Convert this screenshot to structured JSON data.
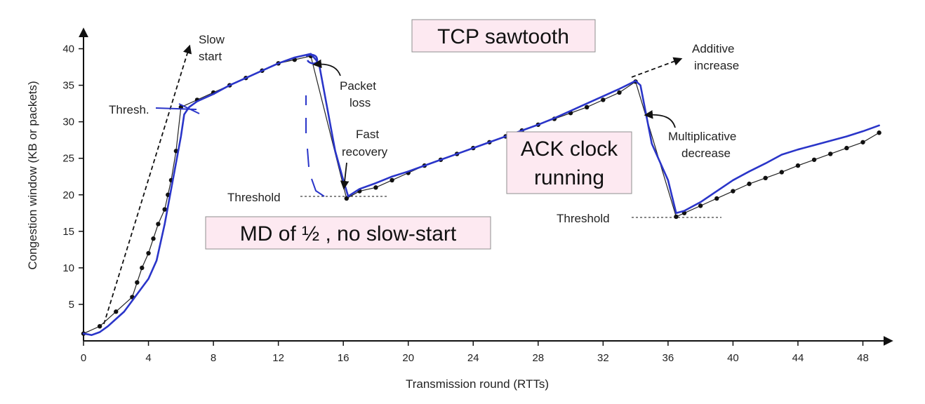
{
  "chart_data": {
    "type": "line",
    "xlabel": "Transmission round (RTTs)",
    "ylabel": "Congestion window  (KB or packets)",
    "xlim": [
      0,
      50
    ],
    "ylim": [
      0,
      42
    ],
    "xticks": [
      0,
      4,
      8,
      12,
      16,
      20,
      24,
      28,
      32,
      36,
      40,
      44,
      48
    ],
    "yticks": [
      5,
      10,
      15,
      20,
      25,
      30,
      35,
      40
    ],
    "grid": false,
    "legend": "none",
    "series": [
      {
        "style": "dotted-markers",
        "x": [
          0,
          1,
          2,
          3,
          3.3,
          3.6,
          4,
          4.3,
          4.6,
          5,
          5.2,
          5.4,
          5.7,
          6,
          7,
          8,
          9,
          10,
          11,
          12,
          13,
          14,
          16.2,
          17,
          18,
          19,
          20,
          21,
          22,
          23,
          24,
          25,
          26,
          27,
          28,
          29,
          30,
          31,
          32,
          33,
          34,
          36.5,
          37,
          38,
          39,
          40,
          41,
          42,
          43,
          44,
          45,
          46,
          47,
          48,
          49
        ],
        "y": [
          1,
          2,
          4,
          6,
          8,
          10,
          12,
          14,
          16,
          18,
          20,
          22,
          26,
          32,
          33,
          34,
          35,
          36,
          37,
          38,
          38.5,
          39,
          19.5,
          20.5,
          21,
          22,
          23,
          24,
          24.8,
          25.6,
          26.4,
          27.2,
          28,
          28.8,
          29.6,
          30.4,
          31.2,
          32,
          33,
          34,
          35.5,
          17,
          17.5,
          18.5,
          19.5,
          20.5,
          21.5,
          22.3,
          23.1,
          24,
          24.8,
          25.6,
          26.4,
          27.2,
          28.5
        ]
      },
      {
        "style": "hand-drawn",
        "color": "#2a35c9",
        "x": [
          0,
          0.5,
          1,
          1.5,
          2,
          2.5,
          3,
          3.5,
          4,
          4.5,
          5,
          5.5,
          6,
          6.2,
          6.5,
          7,
          8,
          9,
          10,
          11,
          12,
          13,
          14,
          14.5,
          15,
          15.5,
          16,
          16.3,
          17,
          18,
          19,
          20,
          21,
          22,
          23,
          24,
          25,
          26,
          27,
          28,
          29,
          30,
          31,
          32,
          33,
          34,
          34.3,
          35,
          36,
          36.5,
          37,
          38,
          39,
          40,
          41,
          42,
          43,
          44,
          45,
          46,
          47,
          48,
          49
        ],
        "y": [
          1,
          0.8,
          1.2,
          2,
          3,
          4,
          5.5,
          7,
          8.5,
          11,
          16,
          22,
          28,
          31,
          32,
          32.8,
          33.8,
          35,
          36,
          37,
          38,
          38.8,
          39.3,
          38,
          32,
          26,
          22,
          19.8,
          20.8,
          21.6,
          22.5,
          23.2,
          24,
          24.8,
          25.6,
          26.4,
          27.2,
          28,
          28.8,
          29.6,
          30.5,
          31.5,
          32.5,
          33.5,
          34.5,
          35.6,
          35,
          27,
          22,
          17.5,
          17.8,
          19,
          20.5,
          22,
          23.2,
          24.3,
          25.5,
          26.2,
          26.8,
          27.4,
          28,
          28.7,
          29.5
        ]
      }
    ],
    "annotations": {
      "slow_start": [
        "Slow",
        "start"
      ],
      "thresh": "Thresh.",
      "packet_loss": [
        "Packet",
        "loss"
      ],
      "fast_recovery": [
        "Fast",
        "recovery"
      ],
      "threshold_1": "Threshold",
      "threshold_2": "Threshold",
      "additive_increase": [
        "Additive",
        "increase"
      ],
      "multiplicative_decrease": [
        "Multiplicative",
        "decrease"
      ]
    },
    "overlay_boxes": {
      "tcp_sawtooth": [
        "TCP sawtooth"
      ],
      "ack_clock": [
        "ACK clock",
        "running"
      ],
      "md_half": [
        "MD of ½ , no slow-start"
      ]
    }
  },
  "colors": {
    "pen": "#2a35c9",
    "box_fill": "#fde9f1",
    "box_border": "#8f8f8f",
    "ink": "#111111"
  }
}
